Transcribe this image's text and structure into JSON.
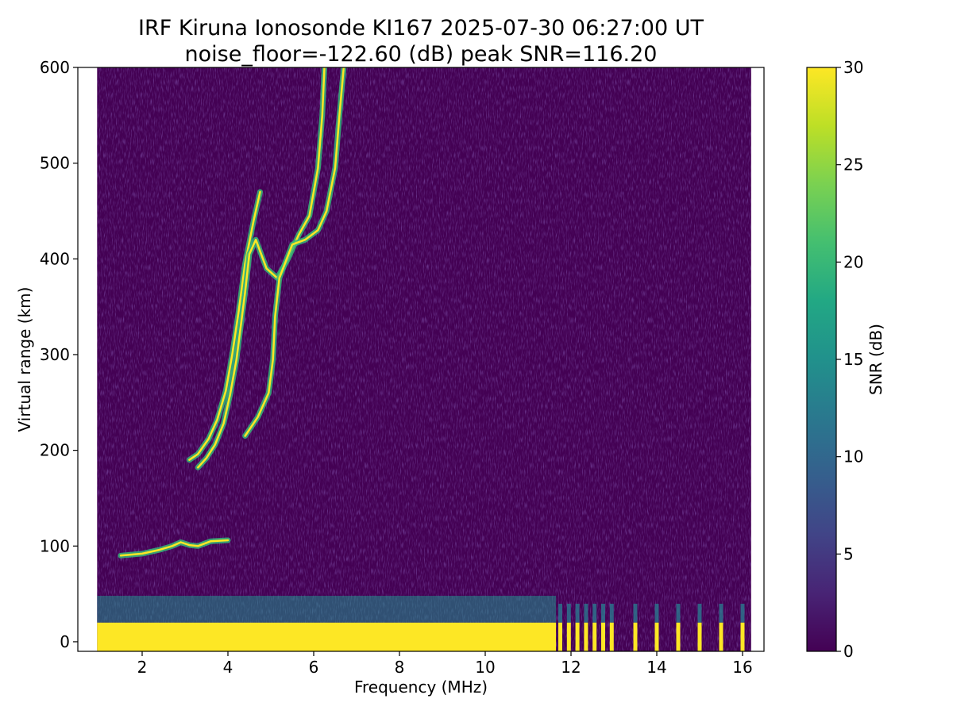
{
  "chart_data": {
    "type": "heatmap",
    "title": "IRF Kiruna Ionosonde KI167 2025-07-30 06:27:00  UT",
    "subtitle": "noise_floor=-122.60 (dB) peak SNR=116.20",
    "xlabel": "Frequency (MHz)",
    "ylabel": "Virtual range (km)",
    "xlim": [
      0.5,
      16.5
    ],
    "ylim": [
      -10,
      600
    ],
    "xticks": [
      2,
      4,
      6,
      8,
      10,
      12,
      14,
      16
    ],
    "yticks": [
      0,
      100,
      200,
      300,
      400,
      500,
      600
    ],
    "sweep_range_mhz": [
      0.95,
      16.2
    ],
    "colorbar": {
      "label": "SNR (dB)",
      "range": [
        0,
        30
      ],
      "ticks": [
        0,
        5,
        10,
        15,
        20,
        25,
        30
      ],
      "colormap": "viridis"
    },
    "colors": {
      "background": "#440154",
      "ground_echo": "#fde725"
    },
    "ground_echo": {
      "continuous_until_mhz": 11.65,
      "height_km": [
        0,
        20
      ],
      "fringe_top_km": 48,
      "pulses_mhz": [
        11.75,
        11.95,
        12.15,
        12.35,
        12.55,
        12.75,
        12.95,
        13.5,
        14.0,
        14.5,
        15.0,
        15.5,
        16.0
      ]
    },
    "traces": [
      {
        "layer": "E",
        "points": [
          [
            1.5,
            90
          ],
          [
            2.0,
            92
          ],
          [
            2.4,
            96
          ],
          [
            2.7,
            100
          ],
          [
            2.9,
            104
          ],
          [
            3.1,
            101
          ],
          [
            3.3,
            100
          ],
          [
            3.6,
            105
          ],
          [
            4.0,
            106
          ]
        ]
      },
      {
        "layer": "F ordinary",
        "points": [
          [
            3.1,
            190
          ],
          [
            3.3,
            196
          ],
          [
            3.55,
            212
          ],
          [
            3.75,
            232
          ],
          [
            3.95,
            262
          ],
          [
            4.1,
            300
          ],
          [
            4.25,
            345
          ],
          [
            4.4,
            395
          ],
          [
            4.6,
            440
          ],
          [
            4.75,
            470
          ]
        ]
      },
      {
        "layer": "F extraordinary",
        "points": [
          [
            3.3,
            182
          ],
          [
            3.5,
            192
          ],
          [
            3.7,
            206
          ],
          [
            3.9,
            228
          ],
          [
            4.05,
            258
          ],
          [
            4.2,
            295
          ],
          [
            4.3,
            330
          ],
          [
            4.4,
            365
          ],
          [
            4.5,
            405
          ],
          [
            4.65,
            420
          ],
          [
            4.9,
            390
          ],
          [
            5.15,
            380
          ],
          [
            5.4,
            400
          ],
          [
            5.65,
            425
          ],
          [
            5.9,
            445
          ],
          [
            6.1,
            495
          ],
          [
            6.2,
            550
          ],
          [
            6.25,
            600
          ]
        ]
      },
      {
        "layer": "F2 upper",
        "points": [
          [
            4.4,
            215
          ],
          [
            4.7,
            235
          ],
          [
            4.95,
            260
          ],
          [
            5.05,
            295
          ],
          [
            5.1,
            340
          ],
          [
            5.2,
            380
          ],
          [
            5.5,
            415
          ],
          [
            5.8,
            420
          ],
          [
            6.1,
            430
          ],
          [
            6.3,
            450
          ],
          [
            6.5,
            495
          ],
          [
            6.6,
            550
          ],
          [
            6.7,
            600
          ]
        ]
      }
    ]
  }
}
